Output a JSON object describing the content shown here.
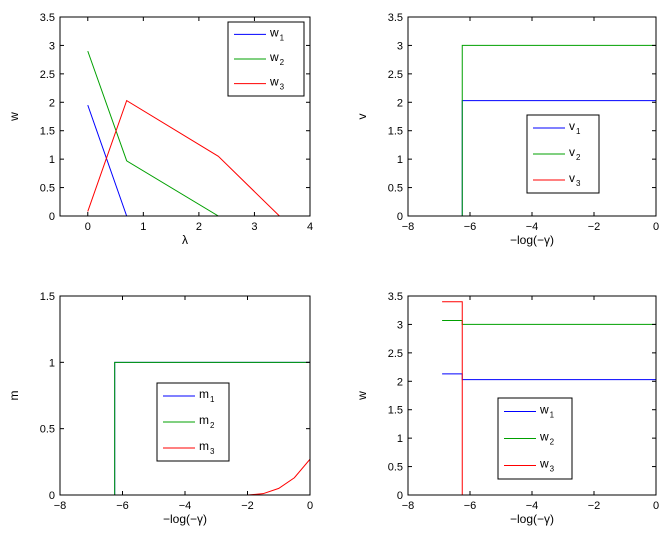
{
  "chart_data": [
    {
      "type": "line",
      "xlabel": "λ",
      "ylabel": "w",
      "xlim": [
        -0.5,
        4
      ],
      "ylim": [
        0,
        3.5
      ],
      "xticks": [
        0,
        1,
        2,
        3,
        4
      ],
      "xtick_labels": [
        "0",
        "1",
        "2",
        "3",
        "4"
      ],
      "yticks": [
        0,
        0.5,
        1,
        1.5,
        2,
        2.5,
        3,
        3.5
      ],
      "ytick_labels": [
        "0",
        "0.5",
        "1",
        "1.5",
        "2",
        "2.5",
        "3",
        "3.5"
      ],
      "legend_position": "top-right",
      "series": [
        {
          "name": "w",
          "subscript": "1",
          "color": "#0000ff",
          "x": [
            0,
            0.7,
            4
          ],
          "y": [
            1.95,
            0,
            0
          ]
        },
        {
          "name": "w",
          "subscript": "2",
          "color": "#00a000",
          "x": [
            0,
            0.7,
            2.35,
            4
          ],
          "y": [
            2.9,
            0.97,
            0,
            0
          ]
        },
        {
          "name": "w",
          "subscript": "3",
          "color": "#ff0000",
          "x": [
            0,
            0.7,
            2.35,
            3.45,
            4
          ],
          "y": [
            0.08,
            2.03,
            1.05,
            0,
            0
          ]
        }
      ]
    },
    {
      "type": "line",
      "xlabel": "−log(−γ)",
      "ylabel": "v",
      "xlim": [
        -8,
        0
      ],
      "ylim": [
        0,
        3.5
      ],
      "xticks": [
        -8,
        -6,
        -4,
        -2,
        0
      ],
      "xtick_labels": [
        "−8",
        "−6",
        "−4",
        "−2",
        "0"
      ],
      "yticks": [
        0,
        0.5,
        1,
        1.5,
        2,
        2.5,
        3,
        3.5
      ],
      "ytick_labels": [
        "0",
        "0.5",
        "1",
        "1.5",
        "2",
        "2.5",
        "3",
        "3.5"
      ],
      "legend_position": "center",
      "series": [
        {
          "name": "v",
          "subscript": "1",
          "color": "#0000ff",
          "x": [
            -6.9,
            -6.25,
            -6.25,
            0
          ],
          "y": [
            0,
            0,
            2.03,
            2.03
          ]
        },
        {
          "name": "v",
          "subscript": "2",
          "color": "#00a000",
          "x": [
            -6.9,
            -6.25,
            -6.25,
            0
          ],
          "y": [
            0,
            0,
            3.0,
            3.0
          ]
        },
        {
          "name": "v",
          "subscript": "3",
          "color": "#ff0000",
          "x": [
            -6.9,
            0
          ],
          "y": [
            0,
            0
          ]
        }
      ]
    },
    {
      "type": "line",
      "xlabel": "−log(−γ)",
      "ylabel": "m",
      "xlim": [
        -8,
        0
      ],
      "ylim": [
        0,
        1.5
      ],
      "xticks": [
        -8,
        -6,
        -4,
        -2,
        0
      ],
      "xtick_labels": [
        "−8",
        "−6",
        "−4",
        "−2",
        "0"
      ],
      "yticks": [
        0,
        0.5,
        1,
        1.5
      ],
      "ytick_labels": [
        "0",
        "0.5",
        "1",
        "1.5"
      ],
      "legend_position": "center",
      "series": [
        {
          "name": "m",
          "subscript": "1",
          "color": "#0000ff",
          "x": [
            -6.9,
            -6.25,
            -6.25,
            0
          ],
          "y": [
            0,
            0,
            1.0,
            1.0
          ]
        },
        {
          "name": "m",
          "subscript": "2",
          "color": "#00a000",
          "x": [
            -6.9,
            -6.25,
            -6.25,
            0
          ],
          "y": [
            0,
            0,
            1.0,
            1.0
          ]
        },
        {
          "name": "m",
          "subscript": "3",
          "color": "#ff0000",
          "x": [
            -6.9,
            -2.0,
            -1.5,
            -1.0,
            -0.5,
            0
          ],
          "y": [
            0,
            0,
            0.01,
            0.05,
            0.13,
            0.27
          ]
        }
      ]
    },
    {
      "type": "line",
      "xlabel": "−log(−γ)",
      "ylabel": "w",
      "xlim": [
        -8,
        0
      ],
      "ylim": [
        0,
        3.5
      ],
      "xticks": [
        -8,
        -6,
        -4,
        -2,
        0
      ],
      "xtick_labels": [
        "−8",
        "−6",
        "−4",
        "−2",
        "0"
      ],
      "yticks": [
        0,
        0.5,
        1,
        1.5,
        2,
        2.5,
        3,
        3.5
      ],
      "ytick_labels": [
        "0",
        "0.5",
        "1",
        "1.5",
        "2",
        "2.5",
        "3",
        "3.5"
      ],
      "legend_position": "center",
      "series": [
        {
          "name": "w",
          "subscript": "1",
          "color": "#0000ff",
          "x": [
            -6.9,
            -6.25,
            -6.25,
            0
          ],
          "y": [
            2.13,
            2.13,
            2.03,
            2.03
          ]
        },
        {
          "name": "w",
          "subscript": "2",
          "color": "#00a000",
          "x": [
            -6.9,
            -6.25,
            -6.25,
            0
          ],
          "y": [
            3.07,
            3.07,
            3.0,
            3.0
          ]
        },
        {
          "name": "w",
          "subscript": "3",
          "color": "#ff0000",
          "x": [
            -6.9,
            -6.25,
            -6.25,
            0
          ],
          "y": [
            3.4,
            3.4,
            0,
            0
          ]
        }
      ]
    }
  ]
}
